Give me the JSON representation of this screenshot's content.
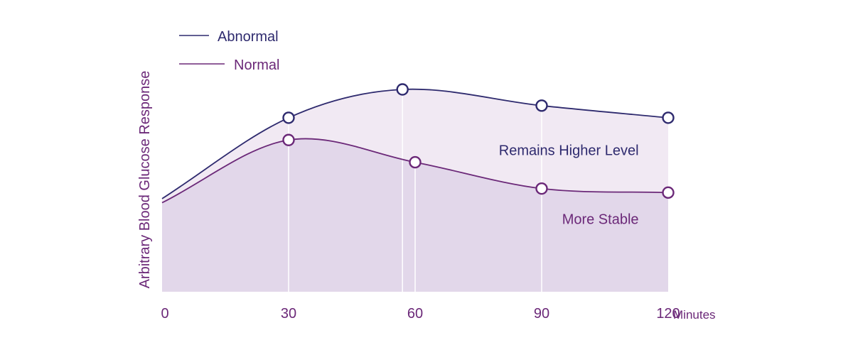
{
  "chart_data": {
    "type": "area",
    "xlabel": "Minutes",
    "ylabel": "Arbitrary Blood Glucose Response",
    "x_ticks": [
      "0",
      "30",
      "60",
      "90",
      "120"
    ],
    "xlim": [
      0,
      120
    ],
    "ylim": [
      0,
      100
    ],
    "grid": false,
    "legend_position": "top-left",
    "series": [
      {
        "name": "Abnormal",
        "color": "#2e2a6e",
        "fill": "#f1e9f3",
        "curve_x": [
          0,
          30,
          57,
          90,
          120
        ],
        "curve_y": [
          46,
          86,
          100,
          92,
          86
        ],
        "markers": [
          {
            "x": 30,
            "y": 86
          },
          {
            "x": 57,
            "y": 100
          },
          {
            "x": 90,
            "y": 92
          },
          {
            "x": 120,
            "y": 86
          }
        ]
      },
      {
        "name": "Normal",
        "color": "#6b2878",
        "fill": "#e2d7ea",
        "curve_x": [
          0,
          30,
          60,
          90,
          120
        ],
        "curve_y": [
          44,
          75,
          64,
          51,
          49
        ],
        "markers": [
          {
            "x": 30,
            "y": 75
          },
          {
            "x": 60,
            "y": 64
          },
          {
            "x": 90,
            "y": 51
          },
          {
            "x": 120,
            "y": 49
          }
        ]
      }
    ],
    "annotations": [
      {
        "text": "Remains Higher Level",
        "x": 112,
        "y": 70,
        "color": "#2e2a6e",
        "anchor": "end"
      },
      {
        "text": "More Stable",
        "x": 112,
        "y": 36,
        "color": "#6b2878",
        "anchor": "end"
      }
    ]
  }
}
